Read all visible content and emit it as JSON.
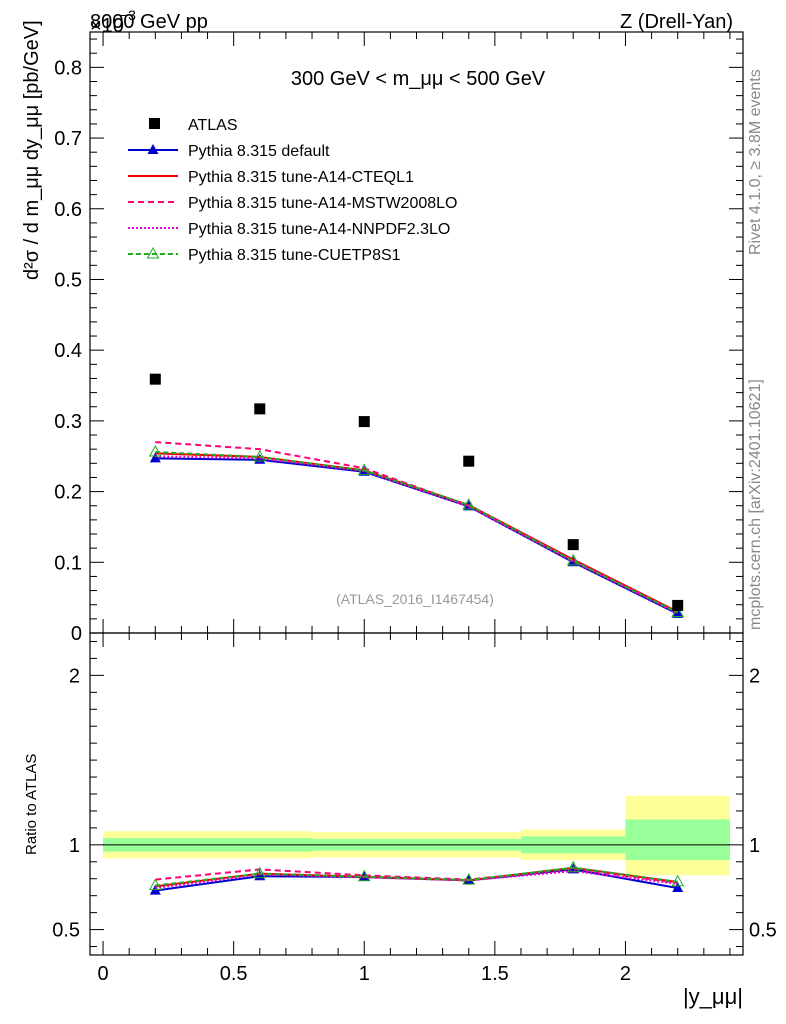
{
  "header": {
    "left": "8000 GeV pp",
    "right": "Z (Drell-Yan)",
    "exponent_prefix": "×10",
    "exponent": "−3"
  },
  "side_labels": {
    "rivet": "Rivet 4.1.0, ≥ 3.8M events",
    "mcplots": "mcplots.cern.ch [arXiv:2401.10621]"
  },
  "chart_data": [
    {
      "type": "line",
      "panel": "main",
      "title": "300 GeV < m_μμ < 500 GeV",
      "ylabel": "d²σ / d m_μμ dy_μμ [pb/GeV]",
      "ylim": [
        0,
        0.85
      ],
      "yscale_note": "×10^-3",
      "y_ticks": [
        0.1,
        0.2,
        0.3,
        0.4,
        0.5,
        0.6,
        0.7,
        0.8
      ],
      "y_tick_labels": [
        "0.1",
        "0.2",
        "0.3",
        "0.4",
        "0.5",
        "0.6",
        "0.7",
        "0.8"
      ],
      "watermark": "(ATLAS_2016_I1467454)",
      "x": [
        0.2,
        0.6,
        1.0,
        1.4,
        1.8,
        2.2
      ],
      "data": {
        "name": "ATLAS",
        "values": [
          0.359,
          0.317,
          0.299,
          0.243,
          0.125,
          0.039
        ]
      },
      "series": [
        {
          "name": "Pythia 8.315 default",
          "color": "#0000cc",
          "dash": "",
          "marker": "filled-triangle",
          "values": [
            0.247,
            0.245,
            0.228,
            0.179,
            0.1,
            0.027
          ]
        },
        {
          "name": "Pythia 8.315 tune-A14-CTEQL1",
          "color": "#ee0000",
          "dash": "",
          "marker": "none",
          "values": [
            0.254,
            0.249,
            0.23,
            0.181,
            0.104,
            0.03
          ]
        },
        {
          "name": "Pythia 8.315 tune-A14-MSTW2008LO",
          "color": "#ff0077",
          "dash": "6,4",
          "marker": "none",
          "values": [
            0.27,
            0.26,
            0.233,
            0.18,
            0.103,
            0.029
          ]
        },
        {
          "name": "Pythia 8.315 tune-A14-NNPDF2.3LO",
          "color": "#ee00cc",
          "dash": "2,2",
          "marker": "none",
          "values": [
            0.25,
            0.247,
            0.229,
            0.179,
            0.101,
            0.028
          ]
        },
        {
          "name": "Pythia 8.315 tune-CUETP8S1",
          "color": "#22aa22",
          "dash": "5,3",
          "marker": "open-triangle",
          "values": [
            0.256,
            0.249,
            0.23,
            0.181,
            0.102,
            0.029
          ]
        }
      ]
    },
    {
      "type": "line",
      "panel": "ratio",
      "ylabel": "Ratio to ATLAS",
      "xlabel": "|y_μμ|",
      "xlim": [
        -0.05,
        2.45
      ],
      "ylim": [
        0.35,
        2.25
      ],
      "y_ticks": [
        0.5,
        1,
        2
      ],
      "y_tick_labels": [
        "0.5",
        "1",
        "2"
      ],
      "x_ticks": [
        0,
        0.5,
        1,
        1.5,
        2
      ],
      "x_tick_labels": [
        "0",
        "0.5",
        "1",
        "1.5",
        "2"
      ],
      "bin_edges": [
        0.0,
        0.4,
        0.8,
        1.2,
        1.6,
        2.0,
        2.4
      ],
      "band_stat": [
        [
          0.96,
          1.04
        ],
        [
          0.96,
          1.04
        ],
        [
          0.965,
          1.035
        ],
        [
          0.965,
          1.035
        ],
        [
          0.95,
          1.05
        ],
        [
          0.91,
          1.15
        ]
      ],
      "band_total": [
        [
          0.92,
          1.08
        ],
        [
          0.92,
          1.08
        ],
        [
          0.925,
          1.075
        ],
        [
          0.925,
          1.075
        ],
        [
          0.91,
          1.09
        ],
        [
          0.82,
          1.29
        ]
      ],
      "x": [
        0.2,
        0.6,
        1.0,
        1.4,
        1.8,
        2.2
      ],
      "series": [
        {
          "name": "Pythia 8.315 default",
          "values": [
            0.73,
            0.815,
            0.81,
            0.79,
            0.855,
            0.745
          ]
        },
        {
          "name": "Pythia 8.315 tune-A14-CTEQL1",
          "values": [
            0.755,
            0.83,
            0.812,
            0.79,
            0.865,
            0.78
          ]
        },
        {
          "name": "Pythia 8.315 tune-A14-MSTW2008LO",
          "values": [
            0.795,
            0.855,
            0.82,
            0.795,
            0.86,
            0.775
          ]
        },
        {
          "name": "Pythia 8.315 tune-A14-NNPDF2.3LO",
          "values": [
            0.745,
            0.825,
            0.808,
            0.79,
            0.845,
            0.77
          ]
        },
        {
          "name": "Pythia 8.315 tune-CUETP8S1",
          "values": [
            0.76,
            0.83,
            0.812,
            0.792,
            0.865,
            0.782
          ]
        }
      ]
    }
  ]
}
